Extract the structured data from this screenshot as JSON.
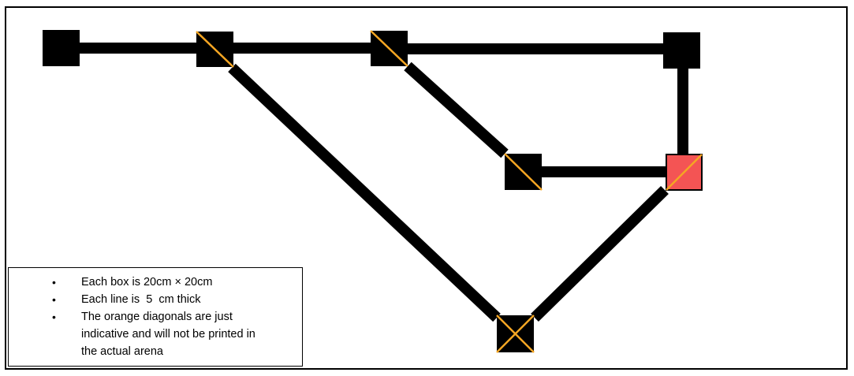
{
  "colors": {
    "line": "#000000",
    "box": "#000000",
    "diagonal": "#F5A623",
    "highlight_box": "#F45454"
  },
  "legend": {
    "items": [
      {
        "bullet": "•",
        "text": "Each box is 20cm × 20cm"
      },
      {
        "bullet": "•",
        "text": "Each line is  5  cm thick"
      },
      {
        "bullet": "•",
        "text": "The orange diagonals are just\nindicative and will not be printed in\nthe actual arena"
      }
    ]
  }
}
